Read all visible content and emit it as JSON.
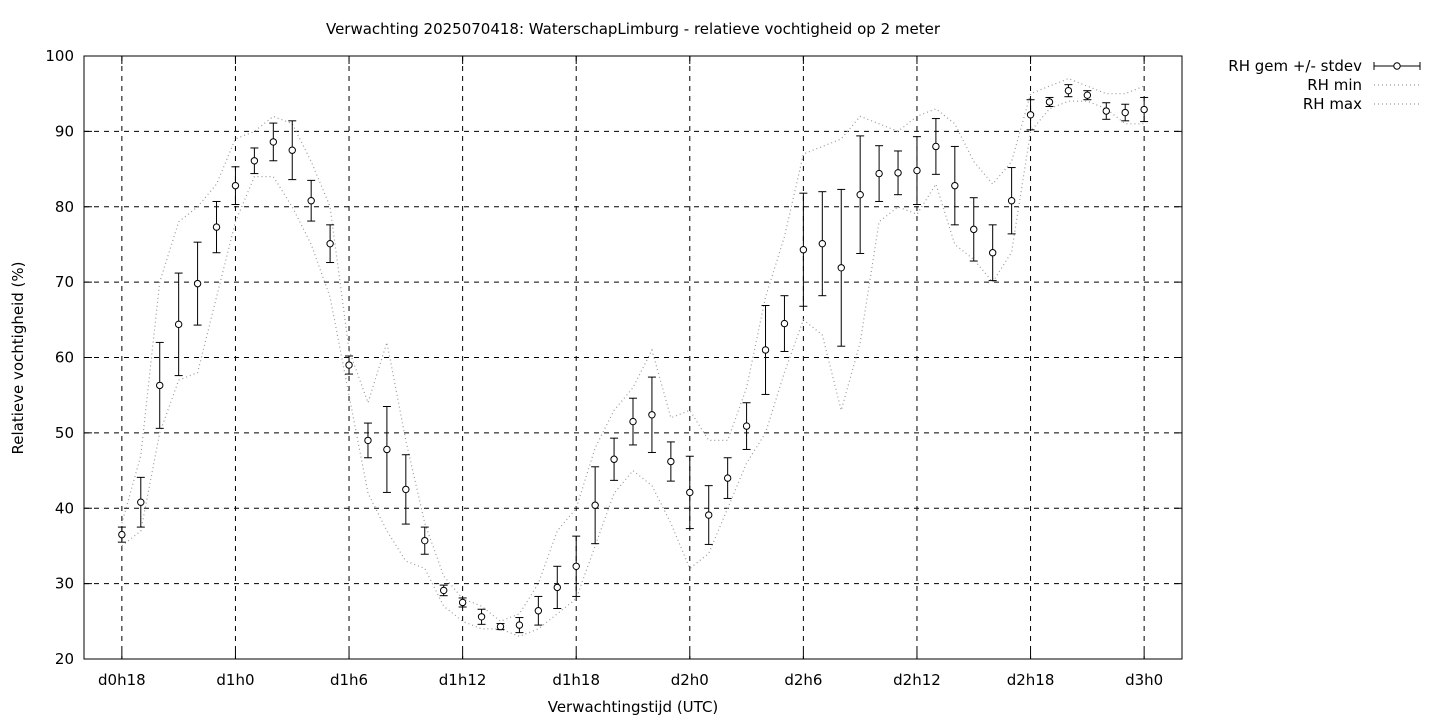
{
  "chart_data": {
    "type": "scatter",
    "title": "Verwachting 2025070418: WaterschapLimburg - relatieve vochtigheid op 2 meter",
    "xlabel": "Verwachtingstijd (UTC)",
    "ylabel": "Relatieve vochtigheid (%)",
    "ylim": [
      20,
      100
    ],
    "xlim": [
      -2,
      56
    ],
    "yticks": [
      20,
      30,
      40,
      50,
      60,
      70,
      80,
      90,
      100
    ],
    "xticks": [
      {
        "x": 0,
        "label": "d0h18"
      },
      {
        "x": 6,
        "label": "d1h0"
      },
      {
        "x": 12,
        "label": "d1h6"
      },
      {
        "x": 18,
        "label": "d1h12"
      },
      {
        "x": 24,
        "label": "d1h18"
      },
      {
        "x": 30,
        "label": "d2h0"
      },
      {
        "x": 36,
        "label": "d2h6"
      },
      {
        "x": 42,
        "label": "d2h12"
      },
      {
        "x": 48,
        "label": "d2h18"
      },
      {
        "x": 54,
        "label": "d3h0"
      }
    ],
    "grid": true,
    "legend_position": "right",
    "series": [
      {
        "name": "RH gem +/- stdev",
        "kind": "errorbar",
        "x": [
          0,
          1,
          2,
          3,
          4,
          5,
          6,
          7,
          8,
          9,
          10,
          11,
          12,
          13,
          14,
          15,
          16,
          17,
          18,
          19,
          20,
          21,
          22,
          23,
          24,
          25,
          26,
          27,
          28,
          29,
          30,
          31,
          32,
          33,
          34,
          35,
          36,
          37,
          38,
          39,
          40,
          41,
          42,
          43,
          44,
          45,
          46,
          47,
          48,
          49,
          50,
          51,
          52,
          53,
          54
        ],
        "y": [
          36.5,
          40.8,
          56.3,
          64.4,
          69.8,
          77.3,
          82.8,
          86.1,
          88.6,
          87.5,
          80.8,
          75.1,
          59.0,
          49.0,
          47.8,
          42.5,
          35.7,
          29.1,
          27.5,
          25.6,
          24.3,
          24.5,
          26.4,
          29.5,
          32.3,
          40.4,
          46.5,
          51.5,
          52.4,
          46.2,
          42.1,
          39.1,
          44.0,
          50.9,
          61.0,
          64.5,
          74.3,
          75.1,
          71.9,
          81.6,
          84.4,
          84.5,
          84.8,
          88.0,
          82.8,
          77.0,
          73.9,
          80.8,
          92.2,
          93.9,
          95.4,
          94.8,
          92.7,
          92.5,
          92.9
        ],
        "err": [
          1.0,
          3.3,
          5.7,
          6.8,
          5.5,
          3.4,
          2.5,
          1.7,
          2.5,
          3.9,
          2.7,
          2.5,
          1.2,
          2.3,
          5.7,
          4.6,
          1.8,
          0.7,
          0.6,
          1.0,
          0.4,
          1.0,
          1.9,
          2.8,
          4.0,
          5.1,
          2.8,
          3.1,
          5.0,
          2.6,
          4.8,
          3.9,
          2.7,
          3.1,
          5.9,
          3.7,
          7.5,
          6.9,
          10.4,
          7.8,
          3.7,
          2.9,
          4.5,
          3.7,
          5.2,
          4.2,
          3.7,
          4.4,
          2.0,
          0.6,
          0.8,
          0.6,
          1.1,
          1.1,
          1.6
        ]
      },
      {
        "name": "RH min",
        "kind": "dotted-line",
        "x": [
          0,
          1,
          2,
          3,
          4,
          5,
          6,
          7,
          8,
          9,
          10,
          11,
          12,
          13,
          14,
          15,
          16,
          17,
          18,
          19,
          20,
          21,
          22,
          23,
          24,
          25,
          26,
          27,
          28,
          29,
          30,
          31,
          32,
          33,
          34,
          35,
          36,
          37,
          38,
          39,
          40,
          41,
          42,
          43,
          44,
          45,
          46,
          47,
          48,
          49,
          50,
          51,
          52,
          53,
          54
        ],
        "y": [
          35,
          37,
          50,
          57,
          58,
          68,
          78,
          84,
          84,
          80,
          75,
          68,
          55,
          42,
          37,
          33,
          32,
          27,
          25,
          24,
          24,
          23,
          24,
          26,
          28,
          35,
          42,
          45,
          43,
          38,
          32,
          34,
          40,
          46,
          50,
          58,
          65,
          63,
          53,
          62,
          78,
          80,
          79,
          83,
          75,
          73,
          70,
          74,
          90,
          93,
          94,
          94,
          93,
          91,
          91
        ]
      },
      {
        "name": "RH max",
        "kind": "dotted-line",
        "x": [
          0,
          1,
          2,
          3,
          4,
          5,
          6,
          7,
          8,
          9,
          10,
          11,
          12,
          13,
          14,
          15,
          16,
          17,
          18,
          19,
          20,
          21,
          22,
          23,
          24,
          25,
          26,
          27,
          28,
          29,
          30,
          31,
          32,
          33,
          34,
          35,
          36,
          37,
          38,
          39,
          40,
          41,
          42,
          43,
          44,
          45,
          46,
          47,
          48,
          49,
          50,
          51,
          52,
          53,
          54
        ],
        "y": [
          38,
          47,
          70,
          78,
          80,
          83,
          89,
          90,
          92,
          91,
          86,
          80,
          61,
          54,
          62,
          49,
          38,
          31,
          28,
          27,
          25,
          26,
          30,
          37,
          40,
          48,
          53,
          56,
          61,
          52,
          53,
          49,
          49,
          56,
          68,
          76,
          87,
          88,
          89,
          92,
          91,
          90,
          92,
          93,
          91,
          86,
          83,
          86,
          95,
          96,
          97,
          96,
          95,
          95,
          96
        ]
      }
    ]
  }
}
